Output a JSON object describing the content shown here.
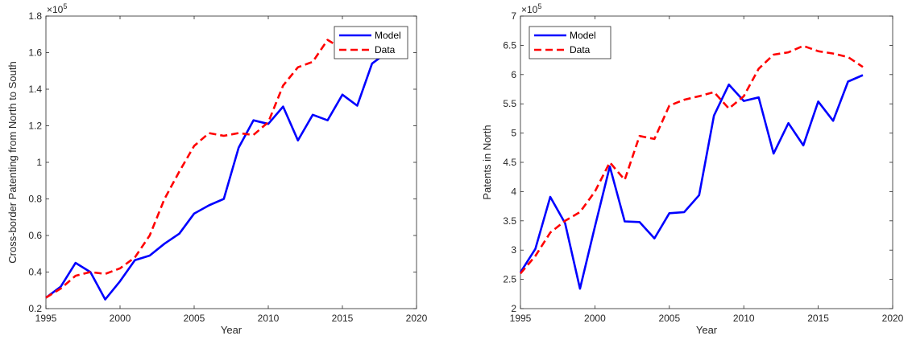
{
  "chart_data": [
    {
      "type": "line",
      "title": "",
      "xlabel": "Year",
      "ylabel": "Cross-border Patenting from North to South",
      "xlim": [
        1995,
        2020
      ],
      "ylim": [
        0.2,
        1.8
      ],
      "x_ticks": [
        1995,
        2000,
        2005,
        2010,
        2015,
        2020
      ],
      "y_ticks": [
        0.2,
        0.4,
        0.6,
        0.8,
        1,
        1.2,
        1.4,
        1.6,
        1.8
      ],
      "y_tick_labels": [
        "0.2",
        "0.4",
        "0.6",
        "0.8",
        "1",
        "1.2",
        "1.4",
        "1.6",
        "1.8"
      ],
      "y_exponent": {
        "base": "×10",
        "power": "5"
      },
      "grid": false,
      "legend_position": "top-right",
      "x": [
        1995,
        1996,
        1997,
        1998,
        1999,
        2000,
        2001,
        2002,
        2003,
        2004,
        2005,
        2006,
        2007,
        2008,
        2009,
        2010,
        2011,
        2012,
        2013,
        2014,
        2015,
        2016,
        2017,
        2018
      ],
      "series": [
        {
          "name": "Model",
          "color": "#0000ff",
          "style": "solid",
          "values": [
            0.26,
            0.32,
            0.45,
            0.4,
            0.25,
            0.35,
            0.465,
            0.49,
            0.555,
            0.61,
            0.72,
            0.765,
            0.8,
            1.08,
            1.23,
            1.21,
            1.305,
            1.12,
            1.26,
            1.23,
            1.37,
            1.31,
            1.54,
            1.6
          ]
        },
        {
          "name": "Data",
          "color": "#ff0000",
          "style": "dashed",
          "values": [
            0.26,
            0.31,
            0.38,
            0.4,
            0.39,
            0.42,
            0.48,
            0.6,
            0.8,
            0.95,
            1.09,
            1.16,
            1.145,
            1.16,
            1.15,
            1.22,
            1.42,
            1.52,
            1.55,
            1.67,
            1.62,
            1.62,
            1.62,
            1.62
          ]
        }
      ]
    },
    {
      "type": "line",
      "title": "",
      "xlabel": "Year",
      "ylabel": "Patents in North",
      "xlim": [
        1995,
        2020
      ],
      "ylim": [
        2,
        7
      ],
      "x_ticks": [
        1995,
        2000,
        2005,
        2010,
        2015,
        2020
      ],
      "y_ticks": [
        2,
        2.5,
        3,
        3.5,
        4,
        4.5,
        5,
        5.5,
        6,
        6.5,
        7
      ],
      "y_tick_labels": [
        "2",
        "2.5",
        "3",
        "3.5",
        "4",
        "4.5",
        "5",
        "5.5",
        "6",
        "6.5",
        "7"
      ],
      "y_exponent": {
        "base": "×10",
        "power": "5"
      },
      "grid": false,
      "legend_position": "top-left",
      "x": [
        1995,
        1996,
        1997,
        1998,
        1999,
        2000,
        2001,
        2002,
        2003,
        2004,
        2005,
        2006,
        2007,
        2008,
        2009,
        2010,
        2011,
        2012,
        2013,
        2014,
        2015,
        2016,
        2017,
        2018
      ],
      "series": [
        {
          "name": "Model",
          "color": "#0000ff",
          "style": "solid",
          "values": [
            2.62,
            3.02,
            3.91,
            3.46,
            2.34,
            3.4,
            4.43,
            3.49,
            3.48,
            3.2,
            3.63,
            3.65,
            3.94,
            5.3,
            5.83,
            5.55,
            5.61,
            4.65,
            5.17,
            4.79,
            5.54,
            5.21,
            5.88,
            5.99
          ]
        },
        {
          "name": "Data",
          "color": "#ff0000",
          "style": "dashed",
          "values": [
            2.6,
            2.9,
            3.3,
            3.5,
            3.65,
            4.0,
            4.5,
            4.2,
            4.95,
            4.9,
            5.47,
            5.57,
            5.63,
            5.7,
            5.42,
            5.63,
            6.1,
            6.34,
            6.38,
            6.49,
            6.4,
            6.36,
            6.3,
            6.13
          ]
        }
      ]
    }
  ]
}
